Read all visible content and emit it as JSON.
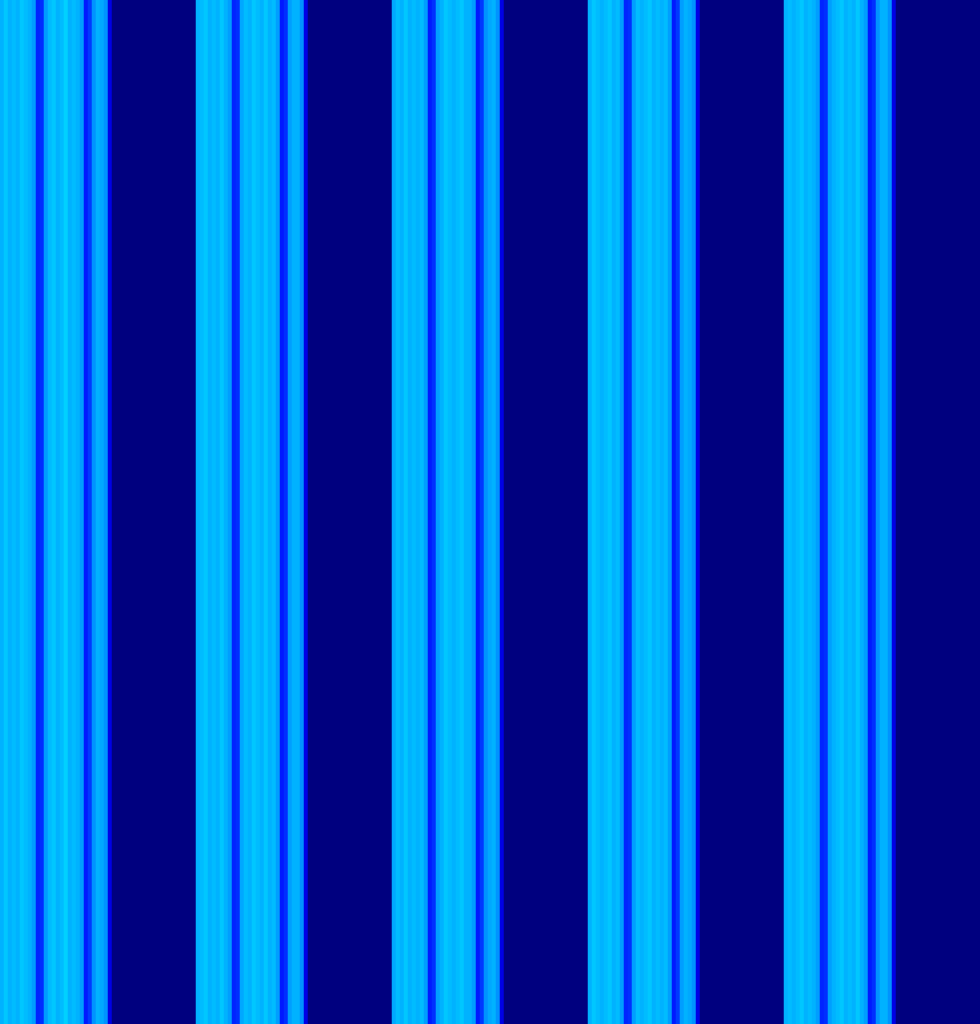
{
  "chart_data": {
    "type": "heatmap",
    "tick_labels": false,
    "color_range": [
      0,
      1
    ],
    "cells": [
      [
        0.3,
        0.32,
        0.3,
        0.31,
        0.3,
        0.32,
        0.31,
        0.3,
        0.28,
        0.16,
        0.17,
        0.28,
        0.31,
        0.32,
        0.3,
        0.31,
        0.33,
        0.3,
        0.31,
        0.3,
        0.28,
        0.15,
        0.18,
        0.27,
        0.3,
        0.29,
        0.27,
        0.1,
        0,
        0,
        0,
        0,
        0,
        0,
        0,
        0,
        0,
        0,
        0,
        0,
        0,
        0,
        0,
        0,
        0,
        0,
        0,
        0,
        0,
        0.3,
        0.31,
        0.32,
        0.3,
        0.31,
        0.3,
        0.32,
        0.3,
        0.28,
        0.16,
        0.17,
        0.29,
        0.31,
        0.3,
        0.32,
        0.31,
        0.3,
        0.32,
        0.3,
        0.31,
        0.28,
        0.15,
        0.17,
        0.28,
        0.3,
        0.3,
        0.27,
        0.1,
        0,
        0,
        0,
        0,
        0,
        0,
        0,
        0,
        0,
        0,
        0,
        0,
        0,
        0,
        0,
        0,
        0,
        0,
        0,
        0,
        0,
        0.29,
        0.31,
        0.3,
        0.32,
        0.3,
        0.31,
        0.3,
        0.31,
        0.28,
        0.15,
        0.17,
        0.28,
        0.3,
        0.32,
        0.31,
        0.3,
        0.31,
        0.32,
        0.3,
        0.3,
        0.28,
        0.15,
        0.18,
        0.27,
        0.29,
        0.3,
        0.27,
        0.1,
        0,
        0,
        0,
        0,
        0,
        0,
        0,
        0,
        0,
        0,
        0,
        0,
        0,
        0,
        0,
        0,
        0,
        0,
        0,
        0,
        0,
        0.3,
        0.32,
        0.31,
        0.3,
        0.31,
        0.32,
        0.3,
        0.31,
        0.28,
        0.16,
        0.17,
        0.28,
        0.31,
        0.3,
        0.31,
        0.32,
        0.3,
        0.31,
        0.3,
        0.31,
        0.28,
        0.15,
        0.18,
        0.28,
        0.3,
        0.29,
        0.27,
        0.1,
        0,
        0,
        0,
        0,
        0,
        0,
        0,
        0,
        0,
        0,
        0,
        0,
        0,
        0,
        0,
        0,
        0,
        0,
        0,
        0,
        0,
        0.3,
        0.31,
        0.3,
        0.31,
        0.32,
        0.3,
        0.31,
        0.3,
        0.28,
        0.16,
        0.17,
        0.28,
        0.3,
        0.31,
        0.32,
        0.3,
        0.31,
        0.3,
        0.32,
        0.3,
        0.28,
        0.15,
        0.17,
        0.27,
        0.3,
        0.3,
        0.27,
        0.1,
        0,
        0,
        0,
        0,
        0,
        0,
        0,
        0,
        0,
        0,
        0,
        0,
        0,
        0,
        0,
        0,
        0,
        0,
        0,
        0,
        0
      ]
    ]
  }
}
